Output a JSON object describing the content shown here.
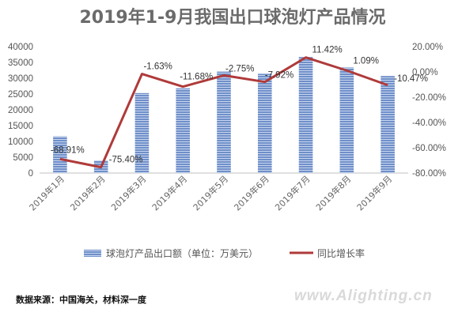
{
  "chart_data": {
    "type": "bar",
    "title": "2019年1-9月我国出口球泡灯产品情况",
    "categories": [
      "2019年1月",
      "2019年2月",
      "2019年3月",
      "2019年4月",
      "2019年5月",
      "2019年6月",
      "2019年7月",
      "2019年8月",
      "2019年9月"
    ],
    "series": [
      {
        "name": "球泡灯产品出口额（单位：万美元）",
        "type": "bar",
        "axis": "left",
        "values": [
          11600,
          4000,
          25300,
          26800,
          32100,
          31400,
          36700,
          33400,
          30700
        ],
        "color": "#6f8fc9"
      },
      {
        "name": "同比增长率",
        "type": "line",
        "axis": "right",
        "values": [
          -68.91,
          -75.4,
          -1.63,
          -11.68,
          -2.75,
          -7.92,
          11.42,
          1.09,
          -10.47
        ],
        "color": "#b03a3a"
      }
    ],
    "data_labels": [
      "-68.91%",
      "-75.40%",
      "-1.63%",
      "-11.68%",
      "-2.75%",
      "-7.92%",
      "11.42%",
      "1.09%",
      "-10.47%"
    ],
    "yleft": {
      "min": 0,
      "max": 40000,
      "step": 5000,
      "ticks": [
        "0",
        "5000",
        "10000",
        "15000",
        "20000",
        "25000",
        "30000",
        "35000",
        "40000"
      ]
    },
    "yright": {
      "min": -80,
      "max": 20,
      "step": 20,
      "ticks": [
        "-80.00%",
        "-60.00%",
        "-40.00%",
        "-20.00%",
        "0.00%",
        "20.00%"
      ]
    },
    "grid": false,
    "legend": "bottom"
  },
  "source_text": "数据来源：中国海关，材料深一度",
  "watermark": "www.Alighting.cn"
}
